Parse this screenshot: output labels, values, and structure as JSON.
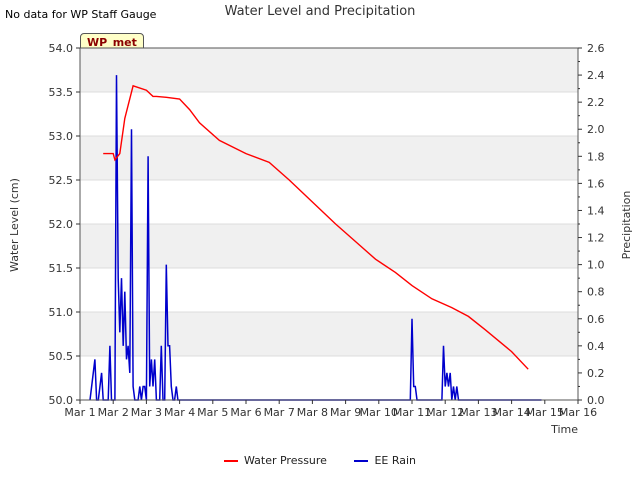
{
  "note": "No data for WP Staff Gauge",
  "badge": "WP_met",
  "chart_data": {
    "type": "line",
    "title": "Water Level and Precipitation",
    "xlabel": "Time",
    "ylabel_left": "Water Level (cm)",
    "ylabel_right": "Precipitation",
    "x_ticks": [
      "Mar 1",
      "Mar 2",
      "Mar 3",
      "Mar 4",
      "Mar 5",
      "Mar 6",
      "Mar 7",
      "Mar 8",
      "Mar 9",
      "Mar 10",
      "Mar 11",
      "Mar 12",
      "Mar 13",
      "Mar 14",
      "Mar 15",
      "Mar 16"
    ],
    "xlim": [
      1,
      16
    ],
    "ylim_left": [
      50.0,
      54.0
    ],
    "yticks_left": [
      "50.0",
      "50.5",
      "51.0",
      "51.5",
      "52.0",
      "52.5",
      "53.0",
      "53.5",
      "54.0"
    ],
    "ylim_right": [
      0.0,
      2.6
    ],
    "yticks_right": [
      "0.0",
      "0.2",
      "0.4",
      "0.6",
      "0.8",
      "1.0",
      "1.2",
      "1.4",
      "1.6",
      "1.8",
      "2.0",
      "2.2",
      "2.4",
      "2.6"
    ],
    "series": [
      {
        "name": "Water Pressure",
        "color": "#ff0000",
        "x": [
          1.7,
          2.0,
          2.05,
          2.2,
          2.35,
          2.6,
          3.0,
          3.2,
          3.3,
          3.6,
          4.0,
          4.3,
          4.6,
          5.2,
          6.0,
          6.7,
          7.3,
          8.0,
          8.7,
          9.3,
          9.9,
          10.5,
          11.0,
          11.6,
          12.2,
          12.7,
          13.2,
          14.0,
          14.5
        ],
        "y": [
          52.8,
          52.8,
          52.73,
          52.8,
          53.2,
          53.57,
          53.52,
          53.45,
          53.45,
          53.44,
          53.42,
          53.3,
          53.15,
          52.95,
          52.8,
          52.7,
          52.5,
          52.25,
          52.0,
          51.8,
          51.6,
          51.45,
          51.3,
          51.15,
          51.05,
          50.95,
          50.8,
          50.55,
          50.35
        ]
      },
      {
        "name": "EE Rain",
        "color": "#0000cc",
        "x": [
          1.3,
          1.45,
          1.5,
          1.55,
          1.65,
          1.7,
          1.75,
          1.85,
          1.9,
          1.95,
          2.05,
          2.1,
          2.15,
          2.2,
          2.25,
          2.3,
          2.35,
          2.4,
          2.45,
          2.5,
          2.55,
          2.6,
          2.65,
          2.7,
          2.75,
          2.8,
          2.85,
          2.9,
          2.95,
          3.0,
          3.05,
          3.1,
          3.15,
          3.2,
          3.25,
          3.3,
          3.35,
          3.4,
          3.45,
          3.5,
          3.55,
          3.6,
          3.65,
          3.7,
          3.75,
          3.8,
          3.85,
          3.9,
          3.95,
          4.0,
          4.05,
          4.1,
          4.15,
          4.2,
          4.25,
          4.3,
          4.35,
          4.4,
          4.45,
          10.95,
          11.0,
          11.05,
          11.1,
          11.15,
          11.9,
          11.95,
          12.0,
          12.05,
          12.1,
          12.15,
          12.2,
          12.25,
          12.3,
          12.35,
          12.4,
          12.45,
          12.5,
          14.9
        ],
        "y": [
          0,
          0.3,
          0,
          0,
          0.2,
          0,
          0,
          0,
          0.4,
          0,
          0,
          2.4,
          0.9,
          0.5,
          0.9,
          0.4,
          0.8,
          0.3,
          0.4,
          0.2,
          2.0,
          0.1,
          0,
          0,
          0,
          0.1,
          0,
          0.1,
          0.1,
          0,
          1.8,
          0.1,
          0.3,
          0.1,
          0.3,
          0,
          0,
          0,
          0.4,
          0,
          0,
          1.0,
          0.4,
          0.4,
          0.1,
          0,
          0,
          0.1,
          0,
          0,
          0,
          0,
          0,
          0,
          0,
          0,
          0,
          0,
          0,
          0,
          0.6,
          0.1,
          0.1,
          0,
          0,
          0.4,
          0.1,
          0.2,
          0.1,
          0.2,
          0,
          0.1,
          0,
          0.1,
          0,
          0,
          0,
          0
        ]
      }
    ],
    "legend_position": "bottom",
    "grid": true
  }
}
